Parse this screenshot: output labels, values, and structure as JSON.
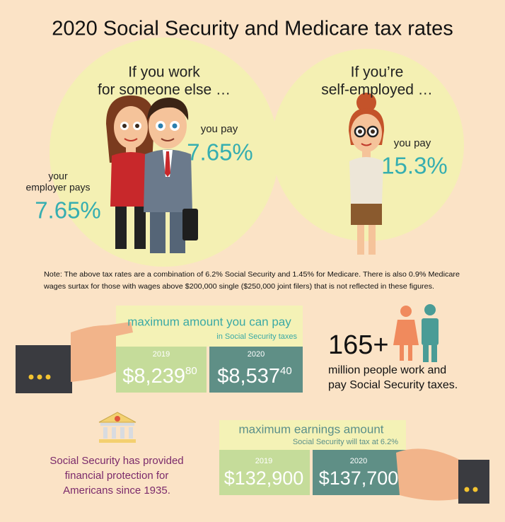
{
  "header": {
    "title": "2020 Social Security and Medicare tax rates"
  },
  "employee": {
    "heading": [
      "If you work",
      "for someone else …"
    ],
    "you_pay_label": "you pay",
    "you_pay": "7.65%",
    "employer_label": [
      "your",
      "employer pays"
    ],
    "employer_pays": "7.65%"
  },
  "self_employed": {
    "heading": [
      "If you’re",
      "self-employed …"
    ],
    "you_pay_label": "you pay",
    "you_pay": "15.3%"
  },
  "note": [
    "Note: The above tax rates are a combination of 6.2% Social Security and 1.45% for Medicare. There is also 0.9% Medicare",
    "wages surtax for those with wages above $200,000 single ($250,000 joint filers) that is not reflected in these figures."
  ],
  "max_tax": {
    "title": "maximum amount you can pay",
    "subtitle": "in Social Security taxes",
    "amounts": [
      {
        "year": "2019",
        "dollars": "$8,239",
        "cents": "80"
      },
      {
        "year": "2020",
        "dollars": "$8,537",
        "cents": "40"
      }
    ]
  },
  "workers": {
    "count": "165+",
    "text": [
      "million people work and",
      "pay Social Security taxes."
    ]
  },
  "history": {
    "text": [
      "Social Security has provided",
      "financial protection for",
      "Americans since 1935."
    ]
  },
  "max_earnings": {
    "title": "maximum earnings amount",
    "subtitle": "Social Security will tax at 6.2%",
    "amounts": [
      {
        "year": "2019",
        "amount": "$132,900"
      },
      {
        "year": "2020",
        "amount": "$137,700"
      }
    ]
  }
}
